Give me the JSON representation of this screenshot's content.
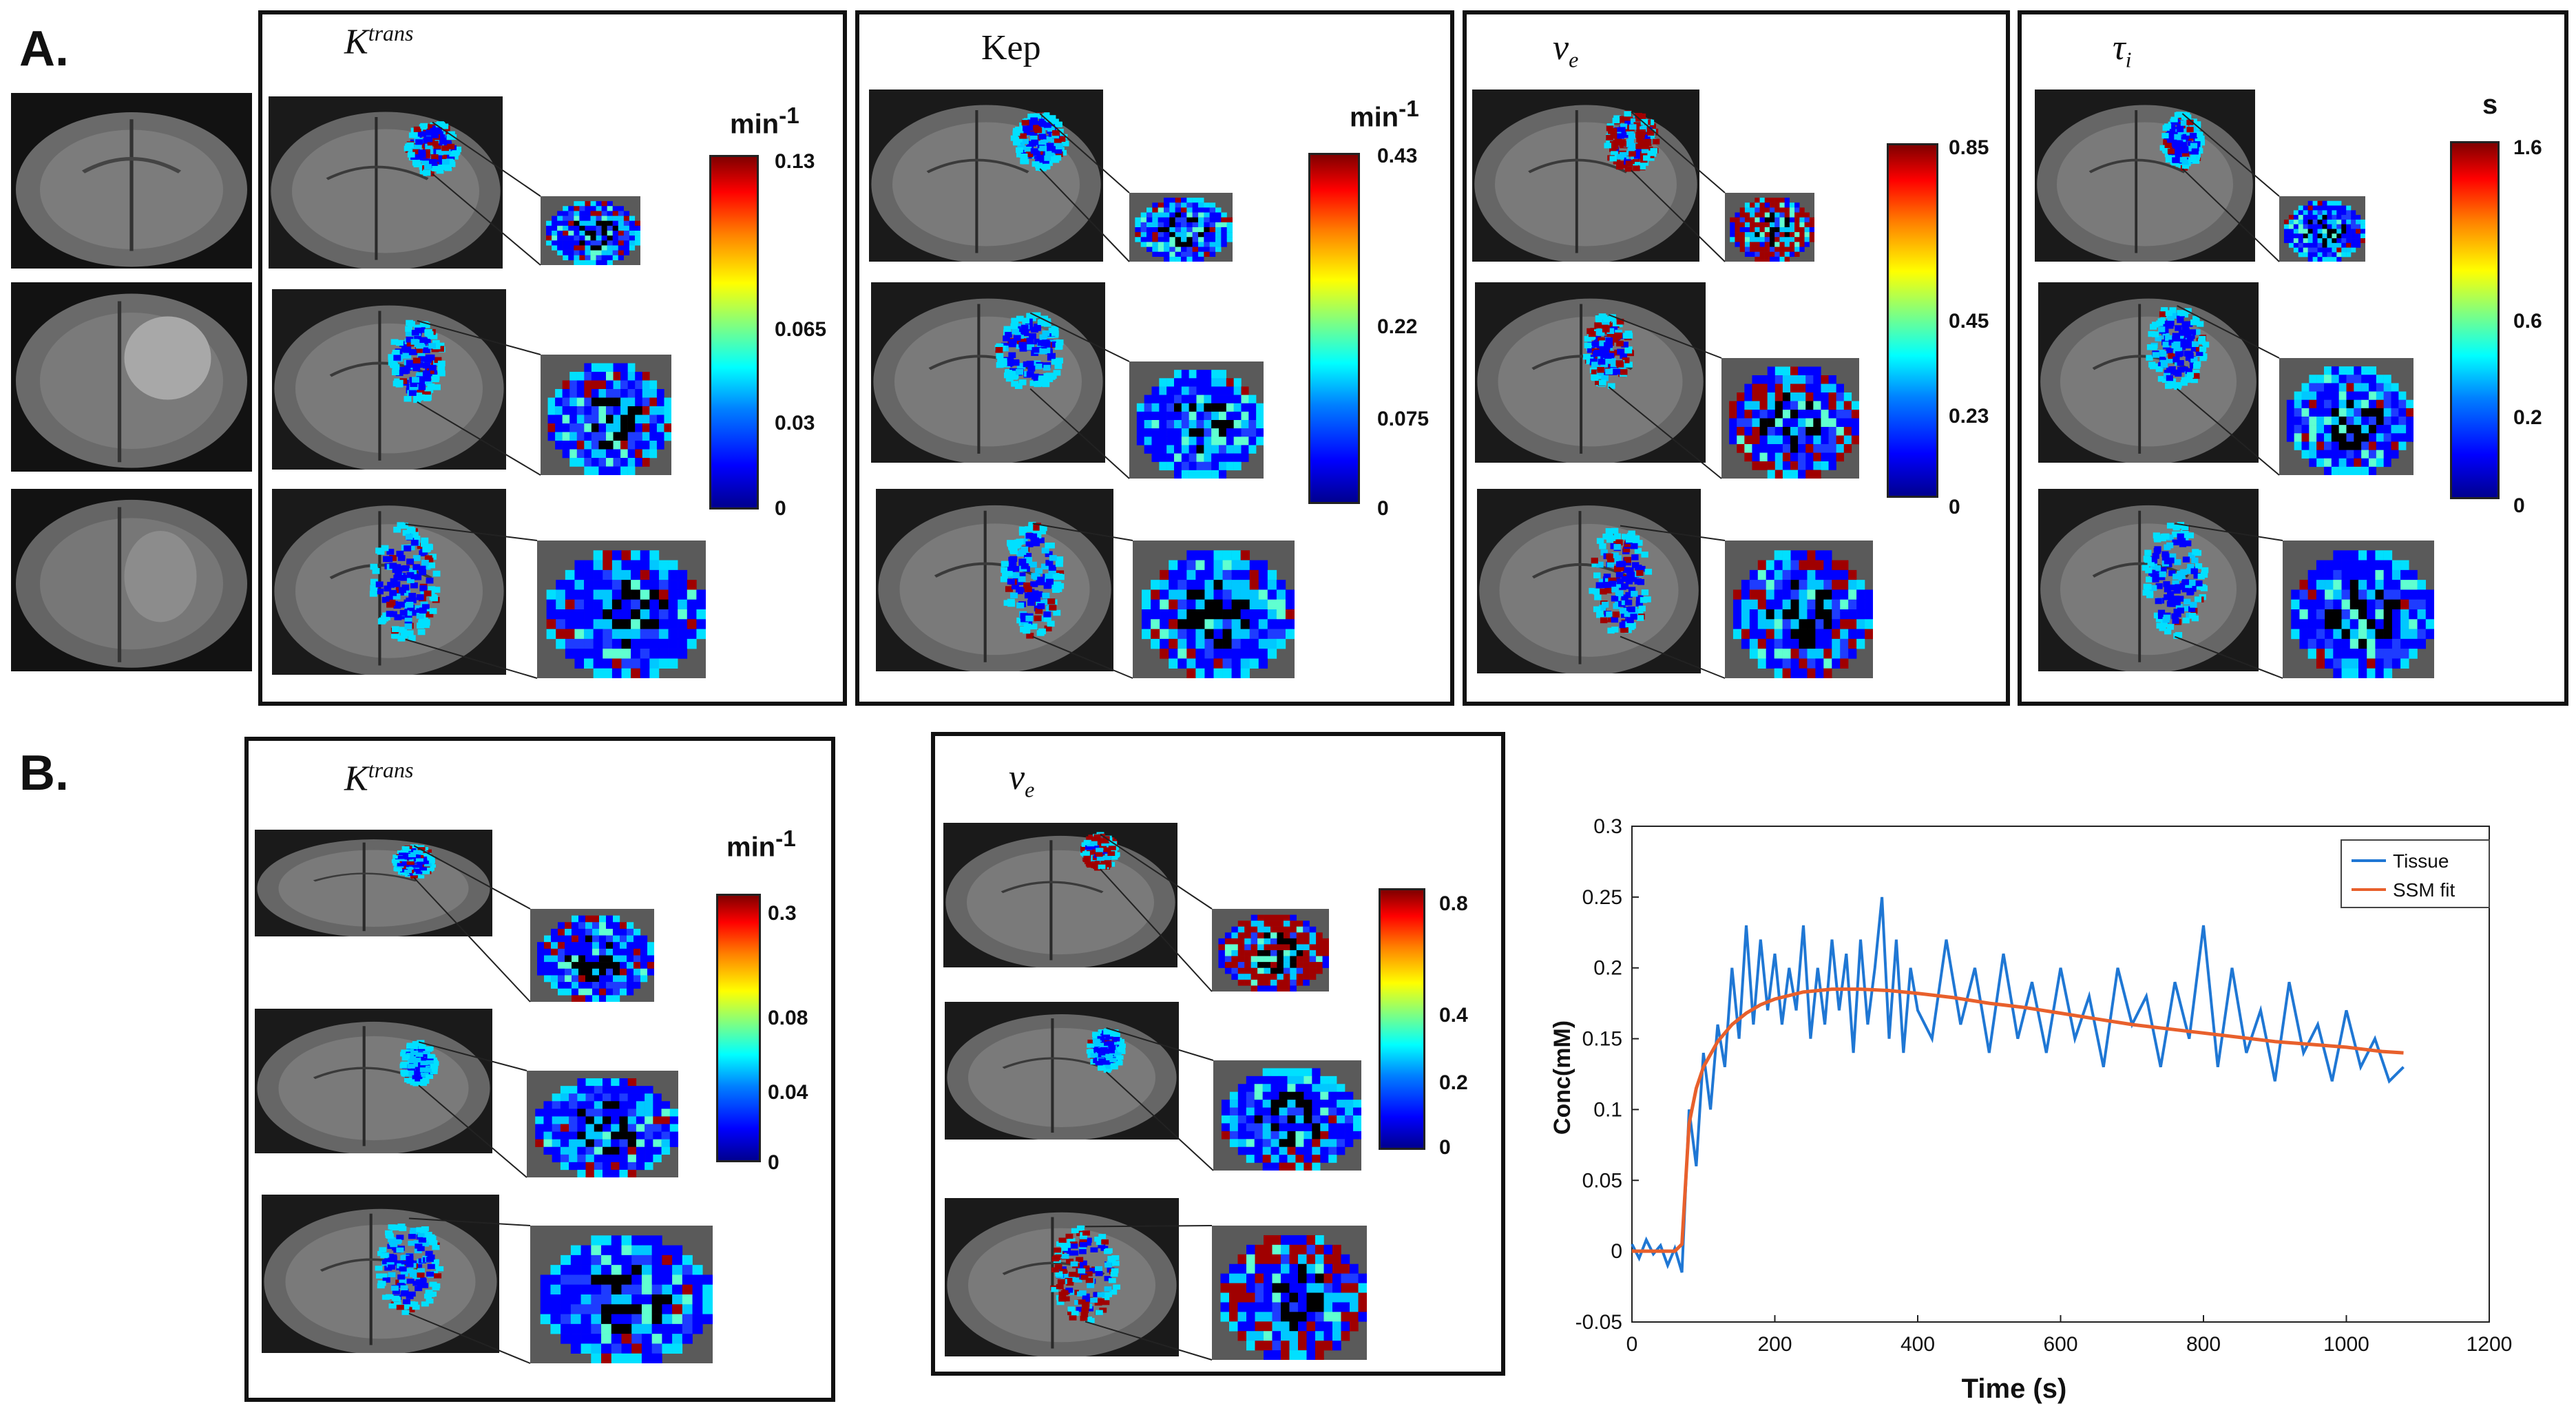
{
  "section_a": {
    "label": "A."
  },
  "section_b": {
    "label": "B."
  },
  "panels_a": [
    {
      "title_main": "K",
      "title_sup": "trans",
      "title_sub": "",
      "italic": true,
      "unit": "min",
      "unit_sup": "-1",
      "ticks": [
        "0.13",
        "0.065",
        "0.03",
        "0"
      ]
    },
    {
      "title_main": "Kep",
      "title_sup": "",
      "title_sub": "",
      "italic": false,
      "unit": "min",
      "unit_sup": "-1",
      "ticks": [
        "0.43",
        "0.22",
        "0.075",
        "0"
      ]
    },
    {
      "title_main": "v",
      "title_sup": "",
      "title_sub": "e",
      "italic": true,
      "unit": "",
      "unit_sup": "",
      "ticks": [
        "0.85",
        "0.45",
        "0.23",
        "0"
      ]
    },
    {
      "title_main": "τ",
      "title_sup": "",
      "title_sub": "i",
      "italic": true,
      "unit": "s",
      "unit_sup": "",
      "ticks": [
        "1.6",
        "0.6",
        "0.2",
        "0"
      ]
    }
  ],
  "panels_b": [
    {
      "title_main": "K",
      "title_sup": "trans",
      "title_sub": "",
      "unit": "min",
      "unit_sup": "-1",
      "ticks": [
        "0.3",
        "0.08",
        "0.04",
        "0"
      ]
    },
    {
      "title_main": "v",
      "title_sup": "",
      "title_sub": "e",
      "unit": "",
      "unit_sup": "",
      "ticks": [
        "0.8",
        "0.4",
        "0.2",
        "0"
      ]
    }
  ],
  "colors": {
    "tissue": "#1f77d4",
    "fit": "#e8602c"
  },
  "chart_data": {
    "type": "line",
    "xlabel": "Time (s)",
    "ylabel": "Conc(mM)",
    "xlim": [
      0,
      1200
    ],
    "ylim": [
      -0.05,
      0.3
    ],
    "xticks": [
      "0",
      "200",
      "400",
      "600",
      "800",
      "1000",
      "1200"
    ],
    "yticks": [
      "-0.05",
      "0",
      "0.05",
      "0.1",
      "0.15",
      "0.2",
      "0.25",
      "0.3"
    ],
    "legend": [
      "Tissue",
      "SSM fit"
    ],
    "legend_position": "top-right",
    "series": [
      {
        "name": "Tissue",
        "x": [
          0,
          10,
          20,
          30,
          40,
          50,
          60,
          70,
          80,
          90,
          100,
          110,
          120,
          130,
          140,
          150,
          160,
          170,
          180,
          190,
          200,
          210,
          220,
          230,
          240,
          250,
          260,
          270,
          280,
          290,
          300,
          310,
          320,
          330,
          340,
          350,
          360,
          370,
          380,
          390,
          400,
          420,
          440,
          460,
          480,
          500,
          520,
          540,
          560,
          580,
          600,
          620,
          640,
          660,
          680,
          700,
          720,
          740,
          760,
          780,
          800,
          820,
          840,
          860,
          880,
          900,
          920,
          940,
          960,
          980,
          1000,
          1020,
          1040,
          1060,
          1080
        ],
        "values": [
          0.005,
          -0.005,
          0.008,
          -0.002,
          0.004,
          -0.01,
          0.002,
          -0.015,
          0.1,
          0.06,
          0.14,
          0.1,
          0.16,
          0.13,
          0.2,
          0.15,
          0.23,
          0.16,
          0.22,
          0.17,
          0.21,
          0.16,
          0.2,
          0.17,
          0.23,
          0.15,
          0.2,
          0.16,
          0.22,
          0.17,
          0.21,
          0.14,
          0.22,
          0.16,
          0.2,
          0.25,
          0.15,
          0.22,
          0.14,
          0.2,
          0.17,
          0.15,
          0.22,
          0.16,
          0.2,
          0.14,
          0.21,
          0.15,
          0.19,
          0.14,
          0.2,
          0.15,
          0.18,
          0.13,
          0.2,
          0.16,
          0.18,
          0.13,
          0.19,
          0.15,
          0.23,
          0.13,
          0.2,
          0.14,
          0.17,
          0.12,
          0.19,
          0.14,
          0.16,
          0.12,
          0.17,
          0.13,
          0.15,
          0.12,
          0.13
        ]
      },
      {
        "name": "SSM fit",
        "x": [
          0,
          60,
          70,
          80,
          90,
          100,
          120,
          140,
          160,
          180,
          200,
          240,
          280,
          320,
          360,
          400,
          450,
          500,
          550,
          600,
          650,
          700,
          750,
          800,
          850,
          900,
          950,
          1000,
          1050,
          1080
        ],
        "values": [
          0,
          0,
          0.005,
          0.09,
          0.115,
          0.13,
          0.148,
          0.16,
          0.168,
          0.174,
          0.178,
          0.183,
          0.185,
          0.185,
          0.184,
          0.182,
          0.179,
          0.175,
          0.172,
          0.168,
          0.164,
          0.16,
          0.157,
          0.154,
          0.151,
          0.148,
          0.146,
          0.144,
          0.141,
          0.14
        ]
      }
    ]
  }
}
